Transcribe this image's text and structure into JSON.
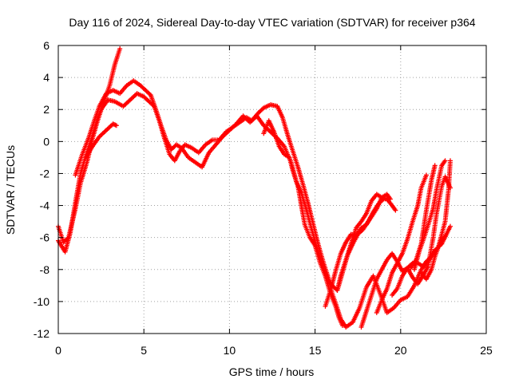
{
  "chart_data": {
    "type": "scatter",
    "title": "Day 116 of 2024, Sidereal Day-to-day VTEC variation (SDTVAR) for receiver p364",
    "xlabel": "GPS time / hours",
    "ylabel": "SDTVAR / TECUs",
    "xlim": [
      0,
      25
    ],
    "ylim": [
      -12,
      6
    ],
    "xticks": [
      0,
      5,
      10,
      15,
      20,
      25
    ],
    "yticks": [
      -12,
      -10,
      -8,
      -6,
      -4,
      -2,
      0,
      2,
      4,
      6
    ],
    "xtick_labels": [
      "0",
      "5",
      "10",
      "15",
      "20",
      "25"
    ],
    "ytick_labels": [
      "-12",
      "-10",
      "-8",
      "-6",
      "-4",
      "-2",
      "0",
      "2",
      "4",
      "6"
    ],
    "grid": true,
    "marker": "plus",
    "colors": {
      "series": "#ff0000",
      "grid": "#a0a0a0",
      "axis": "#000000"
    },
    "series": [
      {
        "points": [
          [
            0.0,
            -5.3
          ],
          [
            0.3,
            -6.3
          ],
          [
            0.6,
            -6.0
          ],
          [
            1.0,
            -4.2
          ],
          [
            1.3,
            -2.6
          ],
          [
            1.7,
            -1.2
          ],
          [
            2.0,
            0.2
          ],
          [
            2.3,
            1.3
          ],
          [
            2.6,
            2.3
          ],
          [
            3.0,
            3.5
          ],
          [
            3.3,
            4.8
          ],
          [
            3.6,
            5.8
          ]
        ]
      },
      {
        "points": [
          [
            0.0,
            -6.2
          ],
          [
            0.4,
            -6.9
          ],
          [
            0.7,
            -5.7
          ],
          [
            1.0,
            -3.8
          ],
          [
            1.3,
            -2.0
          ],
          [
            1.6,
            -0.9
          ],
          [
            2.0,
            0.4
          ],
          [
            2.3,
            1.5
          ],
          [
            2.5,
            2.0
          ],
          [
            2.9,
            2.6
          ],
          [
            3.3,
            2.5
          ],
          [
            3.8,
            2.2
          ],
          [
            4.2,
            2.6
          ],
          [
            4.6,
            3.0
          ],
          [
            5.0,
            2.8
          ],
          [
            5.3,
            2.5
          ],
          [
            5.6,
            2.2
          ],
          [
            5.9,
            1.3
          ],
          [
            6.2,
            0.2
          ],
          [
            6.5,
            -0.8
          ],
          [
            6.8,
            -1.2
          ],
          [
            7.1,
            -0.6
          ],
          [
            7.4,
            -0.2
          ],
          [
            7.8,
            -0.4
          ],
          [
            8.2,
            -0.7
          ],
          [
            8.6,
            -0.2
          ],
          [
            9.0,
            0.1
          ],
          [
            9.4,
            0.1
          ],
          [
            9.8,
            0.6
          ],
          [
            10.2,
            0.9
          ],
          [
            10.6,
            1.2
          ],
          [
            11.0,
            1.5
          ],
          [
            11.3,
            1.3
          ],
          [
            11.7,
            1.8
          ],
          [
            12.0,
            2.1
          ],
          [
            12.4,
            2.3
          ],
          [
            12.8,
            2.2
          ],
          [
            13.1,
            1.5
          ],
          [
            13.4,
            0.4
          ],
          [
            13.7,
            -0.6
          ],
          [
            14.0,
            -1.6
          ],
          [
            14.3,
            -2.7
          ],
          [
            14.6,
            -3.9
          ],
          [
            14.9,
            -5.2
          ],
          [
            15.2,
            -6.5
          ],
          [
            15.5,
            -7.6
          ],
          [
            15.8,
            -8.6
          ],
          [
            16.0,
            -9.5
          ],
          [
            16.2,
            -10.1
          ],
          [
            16.5,
            -11.1
          ],
          [
            16.8,
            -11.6
          ],
          [
            17.2,
            -11.3
          ],
          [
            17.6,
            -10.4
          ],
          [
            18.0,
            -9.1
          ],
          [
            18.4,
            -8.4
          ],
          [
            18.8,
            -9.5
          ],
          [
            19.2,
            -10.7
          ],
          [
            19.6,
            -10.4
          ],
          [
            20.0,
            -9.9
          ],
          [
            20.4,
            -9.7
          ],
          [
            20.8,
            -9.0
          ],
          [
            21.2,
            -8.0
          ],
          [
            21.6,
            -7.5
          ],
          [
            22.0,
            -6.8
          ],
          [
            22.4,
            -6.4
          ],
          [
            22.9,
            -5.3
          ]
        ]
      },
      {
        "points": [
          [
            1.0,
            -2.1
          ],
          [
            1.4,
            -0.8
          ],
          [
            1.8,
            0.3
          ],
          [
            2.1,
            1.3
          ],
          [
            2.4,
            2.2
          ],
          [
            2.8,
            3.0
          ],
          [
            3.2,
            3.2
          ],
          [
            3.6,
            3.0
          ],
          [
            4.0,
            3.5
          ],
          [
            4.4,
            3.8
          ],
          [
            4.8,
            3.5
          ],
          [
            5.1,
            3.2
          ],
          [
            5.4,
            2.9
          ],
          [
            5.7,
            2.0
          ],
          [
            6.0,
            1.0
          ],
          [
            6.3,
            0.1
          ],
          [
            6.6,
            -0.5
          ],
          [
            6.9,
            -0.2
          ],
          [
            7.2,
            -0.4
          ],
          [
            7.6,
            -1.0
          ],
          [
            8.0,
            -1.3
          ],
          [
            8.4,
            -1.6
          ],
          [
            8.8,
            -0.7
          ],
          [
            9.2,
            -0.2
          ],
          [
            9.6,
            0.3
          ],
          [
            10.0,
            0.7
          ],
          [
            10.4,
            1.1
          ],
          [
            10.8,
            1.6
          ],
          [
            11.2,
            1.2
          ],
          [
            11.6,
            1.6
          ],
          [
            12.0,
            1.0
          ],
          [
            12.4,
            0.6
          ],
          [
            12.8,
            0.2
          ],
          [
            13.2,
            -0.3
          ],
          [
            13.6,
            -1.3
          ],
          [
            13.9,
            -2.5
          ],
          [
            14.2,
            -3.2
          ],
          [
            14.5,
            -4.3
          ],
          [
            14.8,
            -5.5
          ],
          [
            15.1,
            -6.6
          ],
          [
            15.4,
            -7.6
          ],
          [
            15.7,
            -8.6
          ],
          [
            16.0,
            -9.0
          ],
          [
            16.3,
            -9.3
          ],
          [
            16.5,
            -8.4
          ],
          [
            16.8,
            -7.4
          ],
          [
            17.1,
            -6.4
          ],
          [
            17.4,
            -5.4
          ],
          [
            17.7,
            -5.0
          ],
          [
            18.0,
            -4.5
          ],
          [
            18.3,
            -3.7
          ],
          [
            18.6,
            -3.3
          ],
          [
            18.9,
            -3.5
          ],
          [
            19.2,
            -3.6
          ],
          [
            19.5,
            -4.0
          ],
          [
            19.7,
            -4.3
          ]
        ]
      },
      {
        "points": [
          [
            1.6,
            -1.0
          ],
          [
            2.0,
            -0.3
          ],
          [
            2.4,
            0.3
          ],
          [
            2.8,
            0.7
          ],
          [
            3.2,
            1.1
          ],
          [
            3.4,
            1.0
          ]
        ]
      },
      {
        "points": [
          [
            12.0,
            0.5
          ],
          [
            12.3,
            1.3
          ],
          [
            12.6,
            0.6
          ],
          [
            12.9,
            -0.3
          ],
          [
            13.2,
            -0.8
          ],
          [
            13.5,
            -1.0
          ],
          [
            13.7,
            -1.8
          ],
          [
            14.0,
            -2.8
          ],
          [
            14.2,
            -4.0
          ],
          [
            14.4,
            -5.2
          ],
          [
            14.7,
            -6.0
          ],
          [
            15.0,
            -6.5
          ],
          [
            15.3,
            -7.6
          ],
          [
            15.6,
            -8.4
          ],
          [
            15.9,
            -9.5
          ],
          [
            16.2,
            -10.3
          ],
          [
            16.4,
            -11.0
          ],
          [
            16.6,
            -11.5
          ]
        ]
      },
      {
        "points": [
          [
            15.6,
            -10.3
          ],
          [
            15.9,
            -9.3
          ],
          [
            16.2,
            -8.1
          ],
          [
            16.5,
            -7.0
          ],
          [
            16.8,
            -6.3
          ],
          [
            17.1,
            -5.8
          ],
          [
            17.4,
            -5.9
          ],
          [
            17.7,
            -5.4
          ],
          [
            18.0,
            -5.2
          ],
          [
            18.3,
            -4.7
          ],
          [
            18.6,
            -4.2
          ],
          [
            18.9,
            -3.5
          ],
          [
            19.2,
            -3.3
          ],
          [
            19.4,
            -3.6
          ]
        ]
      },
      {
        "points": [
          [
            17.7,
            -11.6
          ],
          [
            18.0,
            -10.6
          ],
          [
            18.3,
            -9.6
          ],
          [
            18.6,
            -8.6
          ],
          [
            18.9,
            -8.0
          ],
          [
            19.2,
            -7.4
          ],
          [
            19.5,
            -7.0
          ],
          [
            19.8,
            -7.5
          ],
          [
            20.1,
            -8.1
          ],
          [
            20.4,
            -7.9
          ],
          [
            20.7,
            -7.6
          ],
          [
            21.0,
            -7.6
          ],
          [
            21.3,
            -7.8
          ],
          [
            21.5,
            -7.5
          ],
          [
            21.8,
            -7.2
          ],
          [
            22.2,
            -6.6
          ],
          [
            22.6,
            -5.0
          ],
          [
            22.8,
            -3.0
          ],
          [
            22.9,
            -1.2
          ]
        ]
      },
      {
        "points": [
          [
            18.6,
            -10.7
          ],
          [
            18.9,
            -9.9
          ],
          [
            19.2,
            -9.2
          ],
          [
            19.5,
            -8.2
          ],
          [
            19.8,
            -7.6
          ],
          [
            20.1,
            -7.0
          ],
          [
            20.4,
            -6.1
          ],
          [
            20.7,
            -5.0
          ],
          [
            21.0,
            -4.0
          ],
          [
            21.2,
            -2.9
          ],
          [
            21.5,
            -2.1
          ]
        ]
      },
      {
        "points": [
          [
            16.3,
            -9.3
          ],
          [
            16.6,
            -8.2
          ],
          [
            16.9,
            -7.1
          ],
          [
            17.2,
            -6.4
          ],
          [
            17.5,
            -5.8
          ],
          [
            17.8,
            -5.5
          ],
          [
            18.1,
            -5.0
          ],
          [
            18.4,
            -4.4
          ],
          [
            18.7,
            -3.9
          ],
          [
            19.0,
            -3.6
          ],
          [
            19.3,
            -3.6
          ]
        ]
      },
      {
        "points": [
          [
            19.5,
            -9.6
          ],
          [
            19.8,
            -9.2
          ],
          [
            20.1,
            -8.4
          ],
          [
            20.4,
            -7.9
          ],
          [
            20.7,
            -8.5
          ],
          [
            21.0,
            -8.9
          ],
          [
            21.3,
            -8.4
          ],
          [
            21.6,
            -7.8
          ],
          [
            21.9,
            -6.0
          ],
          [
            22.1,
            -4.5
          ],
          [
            22.4,
            -2.8
          ],
          [
            22.6,
            -2.2
          ],
          [
            22.9,
            -2.9
          ]
        ]
      },
      {
        "points": [
          [
            20.8,
            -8.0
          ],
          [
            21.1,
            -6.8
          ],
          [
            21.4,
            -5.9
          ],
          [
            21.7,
            -4.9
          ],
          [
            21.9,
            -4.2
          ],
          [
            22.1,
            -3.0
          ],
          [
            22.4,
            -1.5
          ],
          [
            22.6,
            -1.2
          ]
        ]
      },
      {
        "points": [
          [
            20.6,
            -7.9
          ],
          [
            20.9,
            -7.4
          ],
          [
            21.2,
            -6.4
          ],
          [
            21.5,
            -4.3
          ],
          [
            21.8,
            -2.4
          ],
          [
            22.0,
            -1.5
          ]
        ]
      },
      {
        "points": [
          [
            21.2,
            -8.2
          ],
          [
            21.5,
            -8.6
          ],
          [
            21.8,
            -8.0
          ],
          [
            22.0,
            -7.2
          ],
          [
            22.3,
            -6.3
          ],
          [
            22.6,
            -5.9
          ]
        ]
      }
    ]
  }
}
